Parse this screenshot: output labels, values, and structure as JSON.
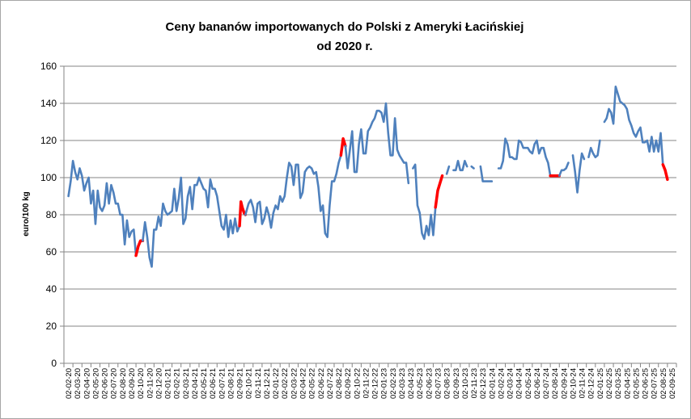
{
  "chart_data": {
    "type": "line",
    "title_line1": "Ceny bananów importowanych do Polski z Ameryki Łacińskiej",
    "title_line2": "od 2020 r.",
    "ylabel": "euro/100 kg",
    "xlabel": "",
    "ylim": [
      0,
      160
    ],
    "y_ticks": [
      "0",
      "20",
      "40",
      "60",
      "80",
      "100",
      "120",
      "140",
      "160"
    ],
    "grid": "horizontal",
    "legend": "none",
    "colors": {
      "series": "#4f81bd",
      "highlight": "#ff0000",
      "grid": "#868686",
      "axis": "#868686"
    },
    "x_labels": [
      "02-02-20",
      "02-03-20",
      "02-04-20",
      "02-05-20",
      "02-06-20",
      "02-07-20",
      "02-08-20",
      "02-09-20",
      "02-10-20",
      "02-11-20",
      "02-12-20",
      "02-01-21",
      "02-02-21",
      "02-03-21",
      "02-04-21",
      "02-05-21",
      "02-06-21",
      "02-07-21",
      "02-08-21",
      "02-09-21",
      "02-10-21",
      "02-11-21",
      "02-12-21",
      "02-01-22",
      "02-02-22",
      "02-03-22",
      "02-04-22",
      "02-05-22",
      "02-06-22",
      "02-07-22",
      "02-08-22",
      "02-09-22",
      "02-10-22",
      "02-11-22",
      "02-12-22",
      "02-01-23",
      "02-02-23",
      "02-03-23",
      "02-04-23",
      "02-05-23",
      "02-06-23",
      "02-07-23",
      "02-08-23",
      "02-09-23",
      "02-10-23",
      "02-11-23",
      "02-12-23",
      "02-01-24",
      "02-02-24",
      "02-03-24",
      "02-04-24",
      "02-05-24",
      "02-06-24",
      "02-07-24",
      "02-08-24",
      "02-09-24",
      "02-10-24",
      "02-11-24",
      "02-12-24",
      "02-01-25",
      "02-02-25",
      "02-03-25",
      "02-04-25",
      "02-05-25",
      "02-06-25",
      "02-07-25",
      "02-08-25",
      "02-09-25"
    ],
    "series": [
      {
        "values": [
          [
            0,
            90
          ],
          [
            0.25,
            98
          ],
          [
            0.5,
            109
          ],
          [
            0.75,
            103
          ],
          [
            1,
            99
          ],
          [
            1.25,
            105
          ],
          [
            1.5,
            101
          ],
          [
            1.75,
            93
          ],
          [
            2,
            97
          ],
          [
            2.25,
            100
          ],
          [
            2.5,
            86
          ],
          [
            2.75,
            93
          ],
          [
            3,
            75
          ],
          [
            3.25,
            93
          ],
          [
            3.5,
            84
          ],
          [
            3.75,
            82
          ],
          [
            4,
            85
          ],
          [
            4.25,
            97
          ],
          [
            4.5,
            86
          ],
          [
            4.75,
            96
          ],
          [
            5,
            92
          ],
          [
            5.25,
            86
          ],
          [
            5.5,
            86
          ],
          [
            5.75,
            80
          ],
          [
            6,
            80
          ],
          [
            6.25,
            64
          ],
          [
            6.5,
            77
          ],
          [
            6.75,
            68
          ],
          [
            7,
            71
          ],
          [
            7.25,
            72
          ],
          [
            7.5,
            58
          ]
        ]
      },
      {
        "highlight": true,
        "values": [
          [
            7.5,
            58
          ],
          [
            7.75,
            63
          ],
          [
            8,
            66
          ],
          [
            8.25,
            66
          ]
        ]
      },
      {
        "values": [
          [
            8.25,
            66
          ],
          [
            8.5,
            76
          ],
          [
            8.75,
            68
          ],
          [
            9,
            57
          ],
          [
            9.25,
            52
          ],
          [
            9.5,
            72
          ],
          [
            9.75,
            72
          ],
          [
            10,
            79
          ],
          [
            10.25,
            74
          ],
          [
            10.5,
            86
          ],
          [
            10.75,
            82
          ],
          [
            11,
            80
          ],
          [
            11.25,
            81
          ],
          [
            11.5,
            82
          ],
          [
            11.75,
            94
          ],
          [
            12,
            82
          ],
          [
            12.25,
            89
          ],
          [
            12.5,
            100
          ],
          [
            12.75,
            75
          ],
          [
            13,
            78
          ],
          [
            13.25,
            90
          ],
          [
            13.5,
            95
          ],
          [
            13.75,
            83
          ],
          [
            14,
            96
          ],
          [
            14.25,
            96
          ],
          [
            14.5,
            100
          ],
          [
            14.75,
            97
          ],
          [
            15,
            94
          ],
          [
            15.25,
            93
          ],
          [
            15.5,
            84
          ],
          [
            15.75,
            99
          ],
          [
            16,
            94
          ],
          [
            16.25,
            94
          ],
          [
            16.5,
            90
          ],
          [
            16.75,
            82
          ],
          [
            17,
            74
          ],
          [
            17.25,
            72
          ],
          [
            17.5,
            80
          ],
          [
            17.75,
            68
          ],
          [
            18,
            77
          ],
          [
            18.25,
            70
          ],
          [
            18.5,
            78
          ],
          [
            18.75,
            71
          ],
          [
            19,
            74
          ]
        ]
      },
      {
        "highlight": true,
        "values": [
          [
            19,
            74
          ],
          [
            19.15,
            87
          ],
          [
            19.3,
            84
          ],
          [
            19.5,
            81
          ],
          [
            19.65,
            80
          ]
        ]
      },
      {
        "values": [
          [
            19.65,
            80
          ],
          [
            20,
            86
          ],
          [
            20.25,
            88
          ],
          [
            20.5,
            84
          ],
          [
            20.75,
            76
          ],
          [
            21,
            86
          ],
          [
            21.25,
            87
          ],
          [
            21.5,
            75
          ],
          [
            21.75,
            78
          ],
          [
            22,
            84
          ],
          [
            22.25,
            80
          ],
          [
            22.5,
            73
          ],
          [
            22.75,
            81
          ],
          [
            23,
            85
          ],
          [
            23.25,
            83
          ],
          [
            23.5,
            90
          ],
          [
            23.75,
            87
          ],
          [
            24,
            90
          ],
          [
            24.25,
            100
          ],
          [
            24.5,
            108
          ],
          [
            24.75,
            106
          ],
          [
            25,
            96
          ],
          [
            25.25,
            107
          ],
          [
            25.5,
            107
          ],
          [
            25.75,
            89
          ],
          [
            26,
            92
          ],
          [
            26.25,
            103
          ],
          [
            26.5,
            105
          ],
          [
            26.75,
            106
          ],
          [
            27,
            105
          ],
          [
            27.25,
            102
          ],
          [
            27.5,
            103
          ],
          [
            27.75,
            95
          ],
          [
            28,
            82
          ],
          [
            28.25,
            85
          ],
          [
            28.5,
            70
          ],
          [
            28.75,
            68
          ],
          [
            29,
            85
          ],
          [
            29.25,
            98
          ],
          [
            29.5,
            98
          ],
          [
            29.75,
            102
          ],
          [
            30,
            108
          ],
          [
            30.25,
            112
          ]
        ]
      },
      {
        "highlight": true,
        "values": [
          [
            30.25,
            112
          ],
          [
            30.5,
            121
          ],
          [
            30.75,
            117
          ]
        ]
      },
      {
        "values": [
          [
            30.75,
            117
          ],
          [
            31,
            105
          ],
          [
            31.25,
            115
          ],
          [
            31.5,
            125
          ],
          [
            31.75,
            103
          ],
          [
            32,
            103
          ],
          [
            32.25,
            118
          ],
          [
            32.5,
            126
          ],
          [
            32.75,
            113
          ],
          [
            33,
            113
          ],
          [
            33.25,
            125
          ],
          [
            33.5,
            127
          ],
          [
            33.75,
            130
          ],
          [
            34,
            132
          ],
          [
            34.25,
            136
          ],
          [
            34.5,
            136
          ],
          [
            34.75,
            135
          ],
          [
            35,
            130
          ],
          [
            35.25,
            140
          ],
          [
            35.5,
            124
          ],
          [
            35.75,
            112
          ],
          [
            36,
            112
          ],
          [
            36.25,
            132
          ],
          [
            36.5,
            115
          ],
          [
            36.75,
            112
          ],
          [
            37,
            110
          ],
          [
            37.25,
            108
          ],
          [
            37.5,
            108
          ],
          [
            37.75,
            97
          ]
        ]
      },
      {
        "values": [
          [
            38.25,
            105
          ],
          [
            38.5,
            107
          ],
          [
            38.75,
            85
          ],
          [
            39,
            81
          ],
          [
            39.25,
            70
          ],
          [
            39.5,
            67
          ],
          [
            39.75,
            74
          ],
          [
            40,
            69
          ],
          [
            40.25,
            80
          ],
          [
            40.5,
            69
          ],
          [
            40.75,
            84
          ]
        ]
      },
      {
        "highlight": true,
        "values": [
          [
            40.75,
            84
          ],
          [
            41,
            93
          ],
          [
            41.25,
            97
          ],
          [
            41.5,
            101
          ]
        ]
      },
      {
        "values": [
          [
            42,
            102
          ],
          [
            42.25,
            106
          ]
        ]
      },
      {
        "values": [
          [
            42.75,
            104
          ],
          [
            43,
            104
          ],
          [
            43.25,
            109
          ],
          [
            43.5,
            104
          ],
          [
            43.75,
            104
          ],
          [
            44,
            109
          ],
          [
            44.25,
            106
          ]
        ]
      },
      {
        "values": [
          [
            44.75,
            106
          ],
          [
            45,
            105
          ]
        ]
      },
      {
        "values": [
          [
            45.75,
            106
          ],
          [
            46,
            98
          ],
          [
            46.25,
            98
          ],
          [
            46.5,
            98
          ],
          [
            46.75,
            98
          ],
          [
            47,
            98
          ]
        ]
      },
      {
        "values": [
          [
            47.75,
            105
          ],
          [
            48,
            105
          ],
          [
            48.25,
            109
          ],
          [
            48.5,
            121
          ],
          [
            48.75,
            118
          ],
          [
            49,
            111
          ],
          [
            49.25,
            111
          ],
          [
            49.5,
            110
          ],
          [
            49.75,
            110
          ],
          [
            50,
            120
          ],
          [
            50.25,
            119
          ],
          [
            50.5,
            116
          ],
          [
            50.75,
            116
          ],
          [
            51,
            116
          ],
          [
            51.25,
            114
          ],
          [
            51.5,
            113
          ],
          [
            51.75,
            118
          ],
          [
            52,
            120
          ],
          [
            52.25,
            113
          ],
          [
            52.5,
            116
          ],
          [
            52.75,
            116
          ],
          [
            53,
            111
          ],
          [
            53.25,
            108
          ],
          [
            53.5,
            101
          ]
        ]
      },
      {
        "highlight": true,
        "values": [
          [
            53.5,
            101
          ],
          [
            53.75,
            101
          ],
          [
            54,
            101
          ],
          [
            54.25,
            101
          ],
          [
            54.5,
            101
          ]
        ]
      },
      {
        "values": [
          [
            54.5,
            101
          ],
          [
            54.75,
            104
          ],
          [
            55,
            104
          ],
          [
            55.25,
            105
          ],
          [
            55.5,
            108
          ]
        ]
      },
      {
        "values": [
          [
            56,
            112
          ],
          [
            56.25,
            103
          ],
          [
            56.5,
            92
          ],
          [
            56.75,
            104
          ],
          [
            57,
            113
          ],
          [
            57.25,
            110
          ]
        ]
      },
      {
        "values": [
          [
            57.75,
            111
          ],
          [
            58,
            116
          ],
          [
            58.25,
            113
          ],
          [
            58.5,
            111
          ],
          [
            58.75,
            112
          ],
          [
            59,
            120
          ]
        ]
      },
      {
        "values": [
          [
            59.5,
            130
          ],
          [
            59.75,
            132
          ],
          [
            60,
            137
          ],
          [
            60.25,
            135
          ],
          [
            60.5,
            129
          ],
          [
            60.75,
            149
          ],
          [
            61,
            145
          ],
          [
            61.25,
            141
          ],
          [
            61.5,
            140
          ],
          [
            61.75,
            139
          ],
          [
            62,
            137
          ],
          [
            62.25,
            131
          ],
          [
            62.5,
            128
          ],
          [
            62.75,
            124
          ],
          [
            63,
            122
          ],
          [
            63.25,
            125
          ],
          [
            63.5,
            127
          ],
          [
            63.75,
            119
          ],
          [
            64,
            119
          ],
          [
            64.25,
            120
          ],
          [
            64.5,
            114
          ],
          [
            64.75,
            122
          ],
          [
            65,
            114
          ],
          [
            65.25,
            120
          ],
          [
            65.5,
            114
          ],
          [
            65.75,
            124
          ],
          [
            66,
            107
          ]
        ]
      },
      {
        "highlight": true,
        "values": [
          [
            66,
            107
          ],
          [
            66.25,
            104
          ],
          [
            66.5,
            99
          ]
        ]
      }
    ]
  }
}
